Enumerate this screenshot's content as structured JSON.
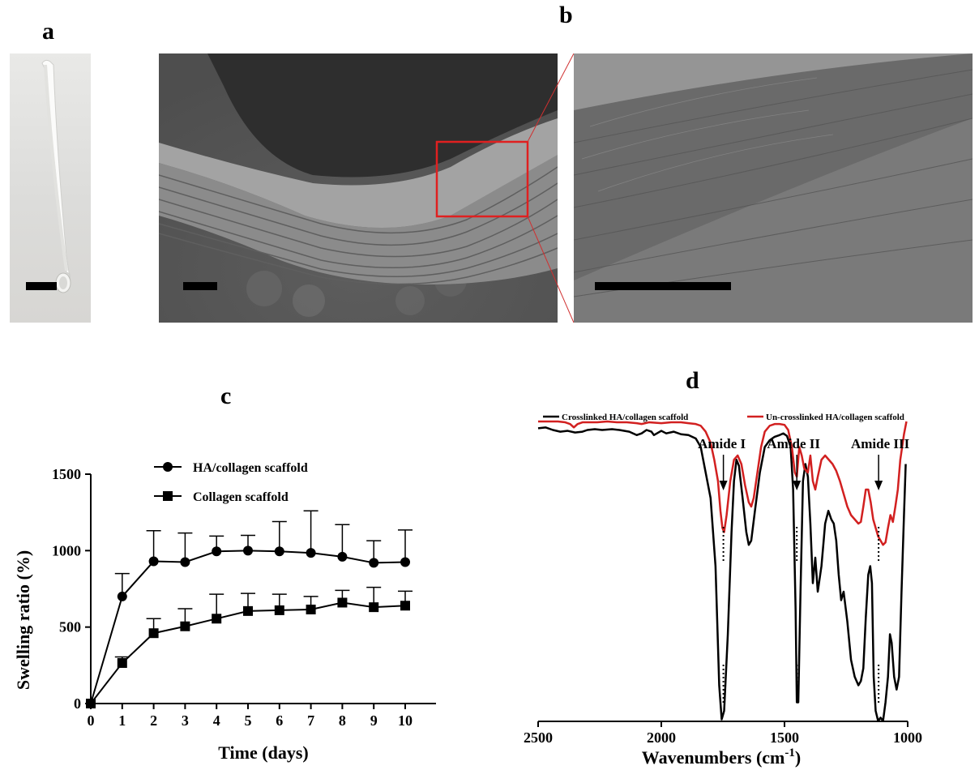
{
  "panels": {
    "a": "a",
    "b": "b",
    "c": "c",
    "d": "d"
  },
  "chart_data": [
    {
      "type": "line",
      "panel": "c",
      "title": "",
      "xlabel": "Time (days)",
      "ylabel": "Swelling ratio (%)",
      "x": [
        0,
        1,
        2,
        3,
        4,
        5,
        6,
        7,
        8,
        9,
        10
      ],
      "xlim": [
        0,
        10
      ],
      "ylim": [
        0,
        1500
      ],
      "yticks": [
        0,
        500,
        1000,
        1500
      ],
      "xticks": [
        0,
        1,
        2,
        3,
        4,
        5,
        6,
        7,
        8,
        9,
        10
      ],
      "series": [
        {
          "name": "HA/collagen scaffold",
          "marker": "circle",
          "values": [
            0,
            700,
            930,
            925,
            995,
            1000,
            995,
            985,
            960,
            920,
            925
          ],
          "error": [
            0,
            150,
            200,
            190,
            100,
            100,
            195,
            275,
            210,
            145,
            210
          ]
        },
        {
          "name": "Collagen scaffold",
          "marker": "square",
          "values": [
            0,
            265,
            460,
            505,
            555,
            605,
            610,
            615,
            660,
            630,
            640
          ],
          "error": [
            0,
            40,
            95,
            115,
            160,
            115,
            105,
            85,
            80,
            130,
            95
          ]
        }
      ],
      "grid": false,
      "legend": "top-left"
    },
    {
      "type": "line",
      "panel": "d",
      "title": "",
      "xlabel": "Wavenumbers (cm",
      "xlabel_sup": "-1",
      "xlabel_end": ")",
      "ylabel": "",
      "xlim": [
        2500,
        1000
      ],
      "xticks": [
        2500,
        2000,
        1500,
        1000
      ],
      "yaxis": false,
      "series": [
        {
          "name": "Crosslinked HA/collagen scaffold",
          "color": "#000000",
          "points": [
            [
              2500,
              92
            ],
            [
              2470,
              93
            ],
            [
              2440,
              90
            ],
            [
              2410,
              88
            ],
            [
              2380,
              89
            ],
            [
              2350,
              87
            ],
            [
              2320,
              88
            ],
            [
              2300,
              90
            ],
            [
              2270,
              91
            ],
            [
              2240,
              90
            ],
            [
              2200,
              91
            ],
            [
              2170,
              90
            ],
            [
              2130,
              88
            ],
            [
              2100,
              84
            ],
            [
              2080,
              86
            ],
            [
              2060,
              90
            ],
            [
              2040,
              88
            ],
            [
              2030,
              84
            ],
            [
              2000,
              89
            ],
            [
              1980,
              86
            ],
            [
              1950,
              88
            ],
            [
              1920,
              85
            ],
            [
              1890,
              84
            ],
            [
              1860,
              80
            ],
            [
              1840,
              70
            ],
            [
              1820,
              40
            ],
            [
              1800,
              10
            ],
            [
              1780,
              -70
            ],
            [
              1765,
              -210
            ],
            [
              1755,
              -250
            ],
            [
              1745,
              -240
            ],
            [
              1730,
              -150
            ],
            [
              1715,
              -30
            ],
            [
              1705,
              30
            ],
            [
              1695,
              55
            ],
            [
              1685,
              48
            ],
            [
              1670,
              10
            ],
            [
              1655,
              -30
            ],
            [
              1645,
              -45
            ],
            [
              1635,
              -40
            ],
            [
              1620,
              -5
            ],
            [
              1600,
              40
            ],
            [
              1580,
              70
            ],
            [
              1560,
              78
            ],
            [
              1540,
              82
            ],
            [
              1520,
              84
            ],
            [
              1505,
              86
            ],
            [
              1490,
              83
            ],
            [
              1475,
              70
            ],
            [
              1465,
              20
            ],
            [
              1455,
              -120
            ],
            [
              1450,
              -230
            ],
            [
              1444,
              -230
            ],
            [
              1435,
              -100
            ],
            [
              1425,
              30
            ],
            [
              1415,
              50
            ],
            [
              1405,
              35
            ],
            [
              1395,
              -20
            ],
            [
              1385,
              -90
            ],
            [
              1375,
              -60
            ],
            [
              1365,
              -100
            ],
            [
              1350,
              -70
            ],
            [
              1335,
              -20
            ],
            [
              1322,
              -5
            ],
            [
              1310,
              -15
            ],
            [
              1300,
              -20
            ],
            [
              1290,
              -40
            ],
            [
              1280,
              -80
            ],
            [
              1270,
              -110
            ],
            [
              1260,
              -100
            ],
            [
              1245,
              -135
            ],
            [
              1230,
              -180
            ],
            [
              1215,
              -200
            ],
            [
              1200,
              -210
            ],
            [
              1190,
              -205
            ],
            [
              1180,
              -190
            ],
            [
              1170,
              -130
            ],
            [
              1160,
              -80
            ],
            [
              1152,
              -70
            ],
            [
              1145,
              -90
            ],
            [
              1138,
              -200
            ],
            [
              1130,
              -240
            ],
            [
              1120,
              -252
            ],
            [
              1110,
              -248
            ],
            [
              1100,
              -252
            ],
            [
              1090,
              -230
            ],
            [
              1080,
              -200
            ],
            [
              1072,
              -150
            ],
            [
              1065,
              -160
            ],
            [
              1055,
              -200
            ],
            [
              1045,
              -215
            ],
            [
              1035,
              -200
            ],
            [
              1025,
              -100
            ],
            [
              1015,
              -10
            ],
            [
              1008,
              50
            ]
          ]
        },
        {
          "name": "Un-crosslinked HA/collagen scaffold",
          "color": "#d22020",
          "points": [
            [
              2500,
              100
            ],
            [
              2460,
              100
            ],
            [
              2420,
              100
            ],
            [
              2390,
              99
            ],
            [
              2370,
              97
            ],
            [
              2355,
              93
            ],
            [
              2340,
              97
            ],
            [
              2320,
              99
            ],
            [
              2300,
              99
            ],
            [
              2260,
              99
            ],
            [
              2220,
              100
            ],
            [
              2180,
              99
            ],
            [
              2140,
              99
            ],
            [
              2100,
              98
            ],
            [
              2080,
              97
            ],
            [
              2050,
              99
            ],
            [
              2000,
              98
            ],
            [
              1960,
              99
            ],
            [
              1920,
              99
            ],
            [
              1890,
              98
            ],
            [
              1860,
              97
            ],
            [
              1840,
              95
            ],
            [
              1820,
              88
            ],
            [
              1800,
              75
            ],
            [
              1785,
              55
            ],
            [
              1770,
              30
            ],
            [
              1760,
              -5
            ],
            [
              1752,
              -25
            ],
            [
              1745,
              -30
            ],
            [
              1735,
              -10
            ],
            [
              1720,
              30
            ],
            [
              1705,
              55
            ],
            [
              1690,
              60
            ],
            [
              1675,
              50
            ],
            [
              1660,
              25
            ],
            [
              1645,
              5
            ],
            [
              1635,
              0
            ],
            [
              1625,
              10
            ],
            [
              1610,
              40
            ],
            [
              1595,
              70
            ],
            [
              1580,
              88
            ],
            [
              1560,
              95
            ],
            [
              1540,
              97
            ],
            [
              1520,
              97
            ],
            [
              1500,
              96
            ],
            [
              1485,
              90
            ],
            [
              1470,
              70
            ],
            [
              1458,
              40
            ],
            [
              1450,
              35
            ],
            [
              1440,
              70
            ],
            [
              1430,
              60
            ],
            [
              1420,
              45
            ],
            [
              1405,
              40
            ],
            [
              1395,
              60
            ],
            [
              1385,
              30
            ],
            [
              1375,
              20
            ],
            [
              1365,
              35
            ],
            [
              1350,
              55
            ],
            [
              1335,
              60
            ],
            [
              1320,
              55
            ],
            [
              1305,
              50
            ],
            [
              1290,
              42
            ],
            [
              1275,
              30
            ],
            [
              1260,
              15
            ],
            [
              1245,
              0
            ],
            [
              1230,
              -10
            ],
            [
              1215,
              -15
            ],
            [
              1200,
              -20
            ],
            [
              1190,
              -18
            ],
            [
              1180,
              0
            ],
            [
              1170,
              20
            ],
            [
              1160,
              20
            ],
            [
              1150,
              5
            ],
            [
              1140,
              -15
            ],
            [
              1130,
              -25
            ],
            [
              1120,
              -35
            ],
            [
              1110,
              -40
            ],
            [
              1100,
              -45
            ],
            [
              1090,
              -42
            ],
            [
              1080,
              -25
            ],
            [
              1070,
              -10
            ],
            [
              1060,
              -18
            ],
            [
              1050,
              0
            ],
            [
              1040,
              20
            ],
            [
              1030,
              55
            ],
            [
              1015,
              85
            ],
            [
              1005,
              100
            ]
          ]
        }
      ],
      "annotations": [
        "Amide I",
        "Amide II",
        "Amide III"
      ],
      "legend": "top"
    }
  ]
}
